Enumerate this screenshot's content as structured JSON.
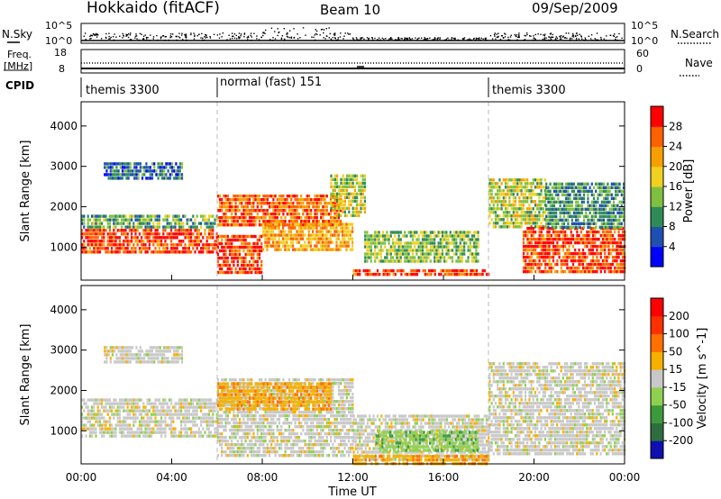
{
  "header": {
    "station": "Hokkaido (fitACF)",
    "beam": "Beam 10",
    "date": "09/Sep/2009"
  },
  "top_panels": {
    "nsky_label": "N.Sky",
    "nsky_ticks": [
      "10^5",
      "10^0"
    ],
    "nsearch_label": "N.Search",
    "nsearch_ticks": [
      "10^5",
      "10^0"
    ],
    "freq_label_1": "Freq.",
    "freq_label_2": "[MHz]",
    "freq_ticks": [
      "18",
      "8"
    ],
    "nave_label": "Nave",
    "nave_ticks": [
      "60",
      "0"
    ],
    "cpid_label": "CPID",
    "cpid_segments": [
      {
        "name": "themis 3300",
        "start_hour": 0,
        "end_hour": 6
      },
      {
        "name": "normal (fast) 151",
        "start_hour": 6,
        "end_hour": 18
      },
      {
        "name": "themis 3300",
        "start_hour": 18,
        "end_hour": 24
      }
    ]
  },
  "chart_data": [
    {
      "type": "heatmap",
      "name": "power",
      "ylabel": "Slant Range [km]",
      "ylim": [
        180,
        4600
      ],
      "yticks": [
        "1000",
        "2000",
        "3000",
        "4000"
      ],
      "xlim": [
        0,
        24
      ],
      "colorbar": {
        "label": "Power [dB]",
        "ticks": [
          "4",
          "8",
          "12",
          "16",
          "20",
          "24",
          "28"
        ],
        "colors": [
          "#0000ff",
          "#1f4fb0",
          "#2e8b57",
          "#7fc040",
          "#f0d020",
          "#f5a000",
          "#ff6000",
          "#ff0000"
        ]
      },
      "regions": [
        {
          "x": [
            0.0,
            6.0
          ],
          "y": [
            850,
            1450
          ],
          "level": 28
        },
        {
          "x": [
            0.0,
            6.0
          ],
          "y": [
            1450,
            1800
          ],
          "level": 12
        },
        {
          "x": [
            1.0,
            4.5
          ],
          "y": [
            2700,
            3100
          ],
          "level": 8
        },
        {
          "x": [
            6.0,
            8.0
          ],
          "y": [
            400,
            1300
          ],
          "level": 28
        },
        {
          "x": [
            6.0,
            11.5
          ],
          "y": [
            1500,
            2300
          ],
          "level": 26
        },
        {
          "x": [
            8.0,
            12.0
          ],
          "y": [
            900,
            1600
          ],
          "level": 22
        },
        {
          "x": [
            11.0,
            12.5
          ],
          "y": [
            1800,
            2800
          ],
          "level": 16
        },
        {
          "x": [
            12.0,
            18.0
          ],
          "y": [
            300,
            450
          ],
          "level": 28
        },
        {
          "x": [
            12.5,
            17.5
          ],
          "y": [
            600,
            1400
          ],
          "level": 14
        },
        {
          "x": [
            18.0,
            20.5
          ],
          "y": [
            1500,
            2700
          ],
          "level": 16
        },
        {
          "x": [
            19.5,
            24.0
          ],
          "y": [
            400,
            1500
          ],
          "level": 28
        },
        {
          "x": [
            20.5,
            24.0
          ],
          "y": [
            1500,
            2600
          ],
          "level": 10
        }
      ]
    },
    {
      "type": "heatmap",
      "name": "velocity",
      "ylabel": "Slant Range [km]",
      "ylim": [
        180,
        4600
      ],
      "yticks": [
        "1000",
        "2000",
        "3000",
        "4000"
      ],
      "xlim": [
        0,
        24
      ],
      "xticks": [
        "00:00",
        "04:00",
        "08:00",
        "12:00",
        "16:00",
        "20:00",
        "00:00"
      ],
      "xlabel": "Time UT",
      "colorbar": {
        "label": "Velocity [m s^-1]",
        "ticks": [
          "200",
          "100",
          "50",
          "15",
          "-15",
          "-50",
          "-100",
          "-200"
        ],
        "colors": [
          "#1010b0",
          "#2e6e3e",
          "#3c9a3c",
          "#8fd050",
          "#c8c8c8",
          "#f5b000",
          "#ff7000",
          "#ff3000",
          "#ff0000"
        ]
      },
      "regions": [
        {
          "x": [
            0.0,
            6.0
          ],
          "y": [
            850,
            1800
          ],
          "value": 0
        },
        {
          "x": [
            1.0,
            4.5
          ],
          "y": [
            2700,
            3100
          ],
          "value": 0
        },
        {
          "x": [
            6.0,
            12.0
          ],
          "y": [
            400,
            2300
          ],
          "value": 0
        },
        {
          "x": [
            6.0,
            11.0
          ],
          "y": [
            1500,
            2200
          ],
          "value": -40
        },
        {
          "x": [
            12.0,
            18.0
          ],
          "y": [
            300,
            1400
          ],
          "value": 0
        },
        {
          "x": [
            13.0,
            17.5
          ],
          "y": [
            500,
            1000
          ],
          "value": 40
        },
        {
          "x": [
            12.0,
            18.0
          ],
          "y": [
            200,
            400
          ],
          "value": -40
        },
        {
          "x": [
            18.0,
            24.0
          ],
          "y": [
            400,
            2700
          ],
          "value": 0
        }
      ]
    }
  ]
}
